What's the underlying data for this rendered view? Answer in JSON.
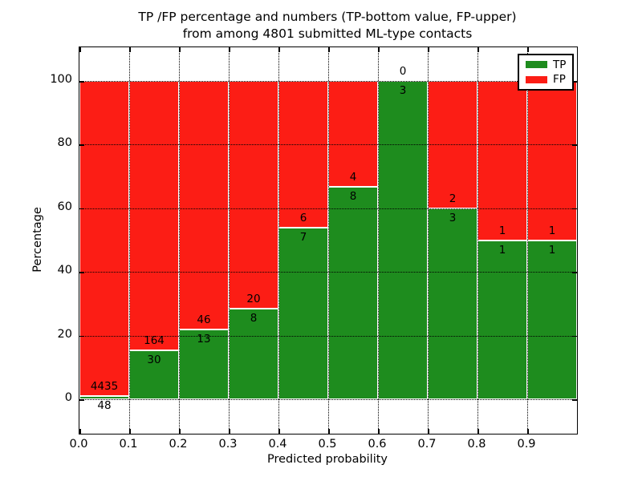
{
  "figure": {
    "title_line1": "TP /FP percentage and numbers (TP-bottom value, FP-upper)",
    "title_line2": "from among 4801 submitted ML-type contacts"
  },
  "chart_data": {
    "type": "bar",
    "stacked": true,
    "normalized_to_percent": true,
    "title": "TP /FP percentage and numbers (TP-bottom value, FP-upper) from among 4801 submitted ML-type contacts",
    "xlabel": "Predicted probability",
    "ylabel": "Percentage",
    "categories": [
      "0.0-0.1",
      "0.1-0.2",
      "0.2-0.3",
      "0.3-0.4",
      "0.4-0.5",
      "0.5-0.6",
      "0.6-0.7",
      "0.7-0.8",
      "0.8-0.9",
      "0.9-1.0"
    ],
    "series": [
      {
        "name": "TP",
        "color": "#1e8c1e",
        "counts": [
          48,
          30,
          13,
          8,
          7,
          8,
          3,
          3,
          1,
          1
        ]
      },
      {
        "name": "FP",
        "color": "#fc1d15",
        "counts": [
          4435,
          164,
          46,
          20,
          6,
          4,
          0,
          2,
          1,
          1
        ]
      }
    ],
    "tp_percent": [
      1.07,
      15.46,
      22.03,
      28.57,
      53.85,
      66.67,
      100.0,
      60.0,
      50.0,
      50.0
    ],
    "xtick_labels": [
      "0.0",
      "0.1",
      "0.2",
      "0.3",
      "0.4",
      "0.5",
      "0.6",
      "0.7",
      "0.8",
      "0.9"
    ],
    "yticks": [
      0,
      20,
      40,
      60,
      80,
      100
    ],
    "xlim": [
      0.0,
      1.0
    ],
    "ylim": [
      -10.8,
      110.6
    ],
    "grid": {
      "style": "dotted",
      "color": "#000000",
      "x_on": true,
      "y_on": true
    },
    "legend": {
      "position": "upper-right",
      "entries": [
        "TP",
        "FP"
      ]
    }
  }
}
